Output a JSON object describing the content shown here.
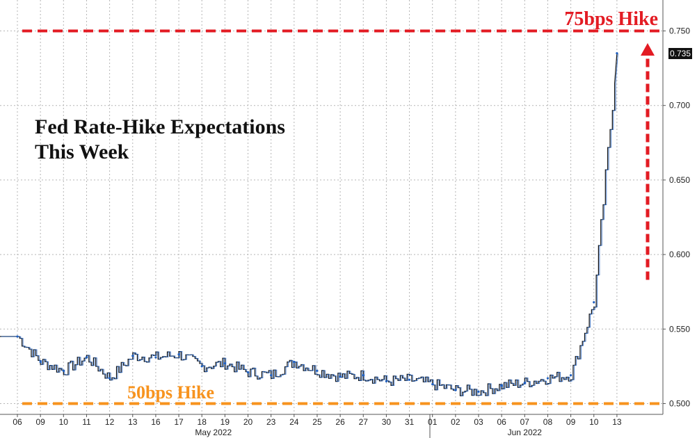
{
  "chart_data": {
    "type": "line",
    "title": [
      "Fed Rate-Hike Expectations",
      "This Week"
    ],
    "xlabel": "",
    "ylabel": "",
    "x_ticks": [
      "06",
      "09",
      "10",
      "11",
      "12",
      "13",
      "16",
      "17",
      "18",
      "19",
      "20",
      "23",
      "24",
      "25",
      "26",
      "27",
      "30",
      "31",
      "01",
      "02",
      "03",
      "06",
      "07",
      "08",
      "09",
      "10",
      "13"
    ],
    "x_months": [
      {
        "label": "May 2022",
        "span": [
          "06",
          "31"
        ]
      },
      {
        "label": "Jun 2022",
        "span": [
          "01",
          "13"
        ]
      }
    ],
    "y_ticks": [
      "0.500",
      "0.550",
      "0.600",
      "0.650",
      "0.700",
      "0.750"
    ],
    "ylim": [
      0.495,
      0.755
    ],
    "grid": true,
    "y_axis_side": "right",
    "last_value_label": "0.735",
    "series": [
      {
        "color": "#1f5fbf",
        "x": [
          "06",
          "09",
          "10",
          "11",
          "12",
          "13",
          "16",
          "17",
          "18",
          "19",
          "20",
          "23",
          "24",
          "25",
          "26",
          "27",
          "30",
          "31",
          "01",
          "02",
          "03",
          "06",
          "07",
          "08",
          "09",
          "10",
          "13"
        ],
        "values": [
          0.545,
          0.528,
          0.522,
          0.531,
          0.517,
          0.532,
          0.531,
          0.533,
          0.525,
          0.527,
          0.521,
          0.519,
          0.528,
          0.522,
          0.518,
          0.519,
          0.515,
          0.516,
          0.513,
          0.509,
          0.508,
          0.512,
          0.514,
          0.517,
          0.519,
          0.568,
          0.735
        ]
      }
    ],
    "reference_lines": [
      {
        "label": "75bps Hike",
        "value": 0.75,
        "color": "#e31b23",
        "style": "dashed"
      },
      {
        "label": "50bps Hike",
        "value": 0.5,
        "color": "#f7931e",
        "style": "dashed"
      }
    ],
    "annotations": [
      {
        "type": "arrow",
        "color": "#e31b23",
        "style": "dashed",
        "from": 0.583,
        "to": 0.74
      }
    ]
  }
}
